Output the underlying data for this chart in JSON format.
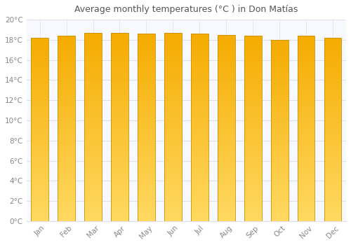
{
  "title": "Average monthly temperatures (°C ) in Don Matías",
  "months": [
    "Jan",
    "Feb",
    "Mar",
    "Apr",
    "May",
    "Jun",
    "Jul",
    "Aug",
    "Sep",
    "Oct",
    "Nov",
    "Dec"
  ],
  "values": [
    18.2,
    18.4,
    18.7,
    18.7,
    18.6,
    18.7,
    18.6,
    18.5,
    18.4,
    18.0,
    18.4,
    18.2
  ],
  "ylim": [
    0,
    20
  ],
  "yticks": [
    0,
    2,
    4,
    6,
    8,
    10,
    12,
    14,
    16,
    18,
    20
  ],
  "bar_color_top": "#F5A800",
  "bar_color_bottom": "#FFD860",
  "bar_edge_color": "#C89000",
  "background_color": "#FFFFFF",
  "plot_bg_color": "#F8F8FF",
  "grid_color": "#DDDDEE",
  "title_fontsize": 9,
  "tick_fontsize": 7.5,
  "title_color": "#555555",
  "tick_color": "#888888",
  "bar_width": 0.65
}
